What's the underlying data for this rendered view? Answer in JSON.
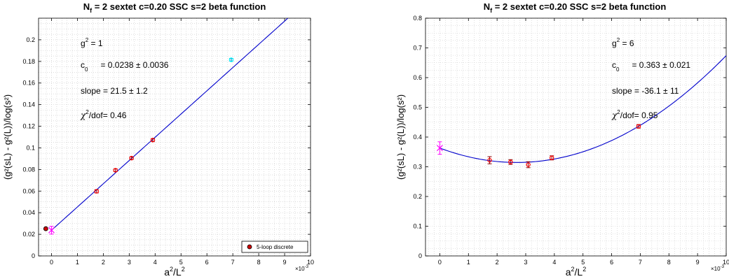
{
  "chart_data": [
    {
      "type": "scatter",
      "title": "N_f = 2 sextet  c=0.20  SSC  s=2  beta function",
      "title_parts": {
        "main": "N",
        "sub": "f",
        "rest": " = 2 sextet  c=0.20  SSC  s=2  beta function"
      },
      "xlabel": {
        "base": "a",
        "sup1": "2",
        "mid": "/L",
        "sup2": "2"
      },
      "ylabel": "(g²(sL) - g²(L))/log(s²)",
      "xlim": [
        -0.0005,
        0.01
      ],
      "ylim": [
        0,
        0.22
      ],
      "xticks": [
        0,
        0.001,
        0.002,
        0.003,
        0.004,
        0.005,
        0.006,
        0.007,
        0.008,
        0.009,
        0.01
      ],
      "xtick_labels": [
        "0",
        "1",
        "2",
        "3",
        "4",
        "5",
        "6",
        "7",
        "8",
        "9",
        "10"
      ],
      "yticks": [
        0,
        0.02,
        0.04,
        0.06,
        0.08,
        0.1,
        0.12,
        0.14,
        0.16,
        0.18,
        0.2
      ],
      "ytick_labels": [
        "0",
        "0.02",
        "0.04",
        "0.06",
        "0.08",
        "0.1",
        "0.12",
        "0.14",
        "0.16",
        "0.18",
        "0.2"
      ],
      "x_exponent_label": "×10",
      "x_exponent_power": "-3",
      "grid": true,
      "series": [
        {
          "kind": "points",
          "color": "#ff0000",
          "edge": "#8b0000",
          "x": [
            0.00174,
            0.00247,
            0.00309,
            0.00391
          ],
          "y": [
            0.0598,
            0.0793,
            0.0905,
            0.1072
          ],
          "err": [
            0.0015,
            0.0012,
            0.0012,
            0.0012
          ]
        },
        {
          "kind": "excluded",
          "color": "#00ffff",
          "edge": "#0080c0",
          "x": [
            0.00694
          ],
          "y": [
            0.1815
          ],
          "err": [
            0.0012
          ]
        },
        {
          "kind": "extrapolation",
          "color": "#ff00ff",
          "x": [
            0.0
          ],
          "y": [
            0.0238
          ],
          "err": [
            0.0036
          ]
        },
        {
          "kind": "fit",
          "color": "#0000cc",
          "c0": 0.0238,
          "slope": 21.5,
          "curv": 0,
          "x_from": 0.0
        }
      ],
      "reference_point": {
        "x": -0.00022,
        "y": 0.0252,
        "color": "#cc0000"
      },
      "legend": {
        "placement": "bottom-right",
        "entry": "5-loop discrete"
      },
      "annotations": {
        "g2": {
          "base": "g",
          "sup": "2",
          "value": " = 1"
        },
        "c0": {
          "base": "c",
          "sub": "0",
          "value": "= 0.0238 ± 0.0036"
        },
        "slope": "slope  = 21.5 ± 1.2",
        "chi": {
          "base": "χ",
          "sup": "2",
          "value": "/dof= 0.46"
        }
      }
    },
    {
      "type": "scatter",
      "title": "N_f = 2 sextet  c=0.20  SSC  s=2  beta function",
      "title_parts": {
        "main": "N",
        "sub": "f",
        "rest": " = 2 sextet  c=0.20  SSC  s=2  beta function"
      },
      "xlabel": {
        "base": "a",
        "sup1": "2",
        "mid": "/L",
        "sup2": "2"
      },
      "ylabel": "(g²(sL) - g²(L))/log(s²)",
      "xlim": [
        -0.0005,
        0.01
      ],
      "ylim": [
        0,
        0.8
      ],
      "xticks": [
        0,
        0.001,
        0.002,
        0.003,
        0.004,
        0.005,
        0.006,
        0.007,
        0.008,
        0.009,
        0.01
      ],
      "xtick_labels": [
        "0",
        "1",
        "2",
        "3",
        "4",
        "5",
        "6",
        "7",
        "8",
        "9",
        "10"
      ],
      "yticks": [
        0,
        0.1,
        0.2,
        0.3,
        0.4,
        0.5,
        0.6,
        0.7,
        0.8
      ],
      "ytick_labels": [
        "0",
        "0.1",
        "0.2",
        "0.3",
        "0.4",
        "0.5",
        "0.6",
        "0.7",
        "0.8"
      ],
      "x_exponent_label": "×10",
      "x_exponent_power": "-3",
      "grid": true,
      "series": [
        {
          "kind": "points",
          "color": "#ff0000",
          "edge": "#8b0000",
          "x": [
            0.00174,
            0.00247,
            0.00309,
            0.00391,
            0.00694
          ],
          "y": [
            0.322,
            0.316,
            0.307,
            0.33,
            0.436
          ],
          "err": [
            0.012,
            0.008,
            0.01,
            0.007,
            0.006
          ]
        },
        {
          "kind": "extrapolation",
          "color": "#ff00ff",
          "x": [
            0.0
          ],
          "y": [
            0.363
          ],
          "err": [
            0.021
          ]
        },
        {
          "kind": "fit",
          "color": "#0000cc",
          "c0": 0.363,
          "slope": -36.1,
          "curv": 6720,
          "x_from": 0.0
        }
      ],
      "annotations": {
        "g2": {
          "base": "g",
          "sup": "2",
          "value": " = 6"
        },
        "c0": {
          "base": "c",
          "sub": "0",
          "value": "= 0.363 ± 0.021"
        },
        "slope": "slope  = -36.1 ± 11",
        "chi": {
          "base": "χ",
          "sup": "2",
          "value": "/dof= 0.95"
        }
      }
    }
  ]
}
